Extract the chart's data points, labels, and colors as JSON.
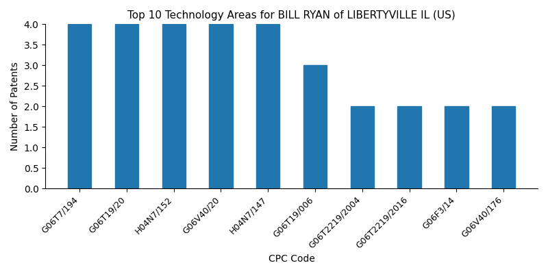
{
  "title": "Top 10 Technology Areas for BILL RYAN of LIBERTYVILLE IL (US)",
  "xlabel": "CPC Code",
  "ylabel": "Number of Patents",
  "categories": [
    "G06T7/194",
    "G06T19/20",
    "H04N7/152",
    "G06V40/20",
    "H04N7/147",
    "G06T19/006",
    "G06T2219/2004",
    "G06T2219/2016",
    "G06F3/14",
    "G06V40/176"
  ],
  "values": [
    4,
    4,
    4,
    4,
    4,
    3,
    2,
    2,
    2,
    2
  ],
  "bar_color": "#2176ae",
  "bar_width": 0.5,
  "ylim": [
    0,
    4.0
  ],
  "yticks": [
    0.0,
    0.5,
    1.0,
    1.5,
    2.0,
    2.5,
    3.0,
    3.5,
    4.0
  ],
  "figsize": [
    8.0,
    4.0
  ],
  "dpi": 100,
  "title_fontsize": 11,
  "label_fontsize": 10
}
